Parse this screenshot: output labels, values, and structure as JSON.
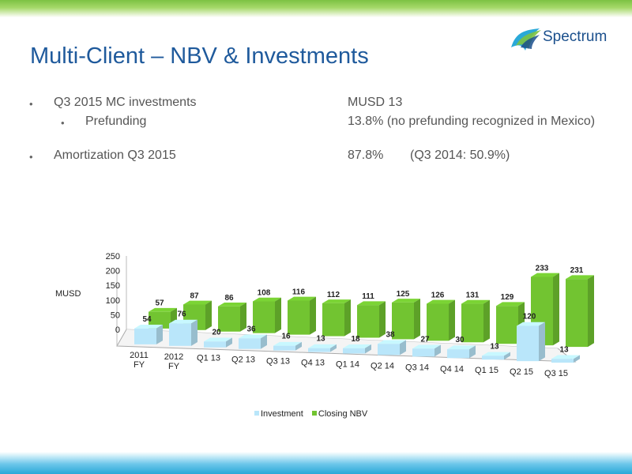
{
  "slide": {
    "title": "Multi-Client – NBV & Investments",
    "logo_text": "Spectrum"
  },
  "bullets": [
    {
      "label": "Q3 2015 MC investments",
      "value": "MUSD 13",
      "level": 1
    },
    {
      "label": "Prefunding",
      "value": "13.8% (no prefunding recognized in Mexico)",
      "level": 2
    },
    {
      "label": "Amortization Q3 2015",
      "value": "87.8%",
      "value2": "(Q3 2014: 50.9%)",
      "level": 1
    }
  ],
  "colors": {
    "title": "#1f5a9c",
    "investment": "#b9e6fa",
    "nbv": "#72c431"
  },
  "chart_data": {
    "type": "bar",
    "ylabel": "MUSD",
    "ylim": [
      0,
      250
    ],
    "yticks": [
      "0",
      "50",
      "100",
      "150",
      "200",
      "250"
    ],
    "categories": [
      [
        "2011",
        "FY"
      ],
      [
        "2012",
        "FY"
      ],
      [
        "Q1 13"
      ],
      [
        "Q2 13"
      ],
      [
        "Q3 13"
      ],
      [
        "Q4 13"
      ],
      [
        "Q1 14"
      ],
      [
        "Q2 14"
      ],
      [
        "Q3 14"
      ],
      [
        "Q4 14"
      ],
      [
        "Q1 15"
      ],
      [
        "Q2 15"
      ],
      [
        "Q3 15"
      ]
    ],
    "series": [
      {
        "name": "Investment",
        "values": [
          54,
          76,
          20,
          36,
          16,
          13,
          18,
          38,
          27,
          30,
          13,
          120,
          13
        ]
      },
      {
        "name": "Closing NBV",
        "values": [
          57,
          87,
          86,
          108,
          116,
          112,
          111,
          125,
          126,
          131,
          129,
          233,
          231
        ]
      }
    ],
    "legend_position": "bottom"
  }
}
